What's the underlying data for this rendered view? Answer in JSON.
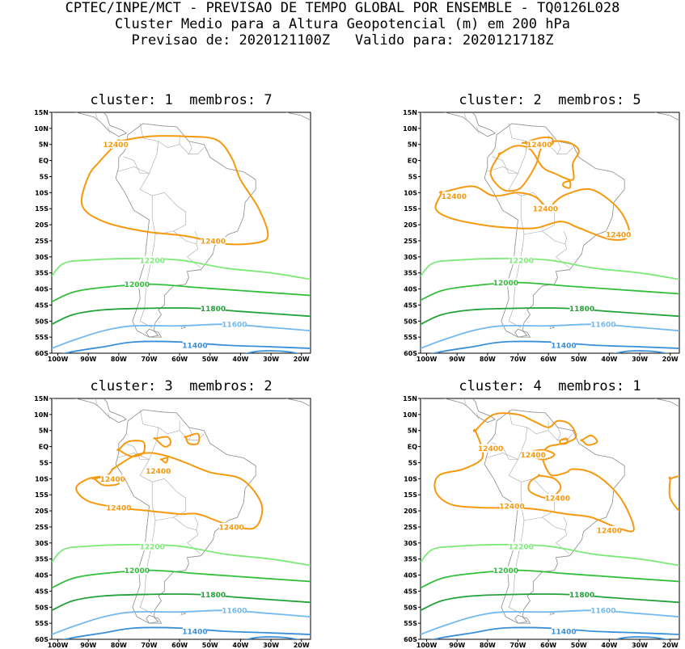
{
  "header": {
    "line1": "CPTEC/INPE/MCT - PREVISAO DE TEMPO GLOBAL POR ENSEMBLE - TQ0126L028",
    "line2": "Cluster Medio para a Altura Geopotencial (m) em 200 hPa",
    "line3": "Previsao de: 2020121100Z   Valido para: 2020121718Z"
  },
  "axes": {
    "lat_labels": [
      "15N",
      "10N",
      "5N",
      "EQ",
      "5S",
      "10S",
      "15S",
      "20S",
      "25S",
      "30S",
      "35S",
      "40S",
      "45S",
      "50S",
      "55S",
      "60S"
    ],
    "lon_labels": [
      "100W",
      "90W",
      "80W",
      "70W",
      "60W",
      "50W",
      "40W",
      "30W",
      "20W"
    ]
  },
  "contour_levels": [
    {
      "value": "11400",
      "color": "#3a8fd9"
    },
    {
      "value": "11600",
      "color": "#74b9ee"
    },
    {
      "value": "11800",
      "color": "#23a23a"
    },
    {
      "value": "12000",
      "color": "#32be3a"
    },
    {
      "value": "12200",
      "color": "#7fe97a"
    },
    {
      "value": "12400",
      "color": "#f59a0f"
    }
  ],
  "panels": [
    {
      "title": "cluster: 1  membros: 7"
    },
    {
      "title": "cluster: 2  membros: 5"
    },
    {
      "title": "cluster: 3  membros: 2"
    },
    {
      "title": "cluster: 4  membros: 1"
    }
  ]
}
